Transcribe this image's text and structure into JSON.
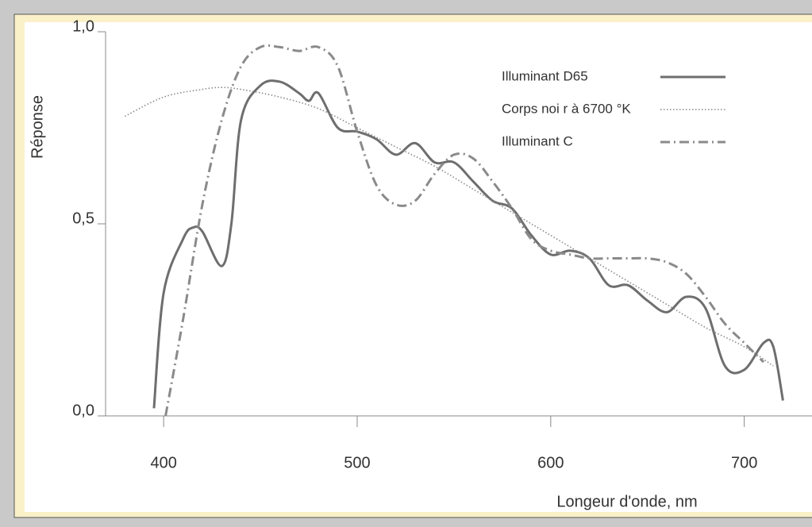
{
  "chart_data": {
    "type": "line",
    "ylabel": "Réponse",
    "xlabel": "Longeur d'onde, nm",
    "xlim": [
      370,
      735
    ],
    "ylim": [
      0,
      1
    ],
    "xticks": [
      400,
      500,
      600,
      700
    ],
    "yticks": [
      {
        "value": 0,
        "label": "0,0"
      },
      {
        "value": 0.5,
        "label": "0,5"
      },
      {
        "value": 1,
        "label": "1,0"
      }
    ],
    "legend": "top-right",
    "series": [
      {
        "name": "Illuminant D65",
        "color": "#6e6e6e",
        "style": "solid",
        "x": [
          395,
          400,
          410,
          415,
          420,
          430,
          435,
          440,
          450,
          460,
          470,
          475,
          480,
          490,
          500,
          510,
          520,
          530,
          540,
          550,
          560,
          570,
          580,
          590,
          600,
          610,
          620,
          630,
          640,
          650,
          660,
          670,
          680,
          690,
          700,
          710,
          715,
          720
        ],
        "values": [
          0.02,
          0.32,
          0.46,
          0.49,
          0.48,
          0.39,
          0.5,
          0.77,
          0.86,
          0.87,
          0.84,
          0.82,
          0.84,
          0.75,
          0.74,
          0.72,
          0.68,
          0.71,
          0.66,
          0.66,
          0.61,
          0.56,
          0.54,
          0.47,
          0.42,
          0.43,
          0.41,
          0.34,
          0.34,
          0.3,
          0.27,
          0.31,
          0.28,
          0.13,
          0.12,
          0.19,
          0.18,
          0.04
        ]
      },
      {
        "name": "Corps noi r à 6700 °K",
        "color": "#8a8a8a",
        "style": "dotted",
        "x": [
          380,
          400,
          420,
          430,
          440,
          460,
          480,
          500,
          520,
          540,
          560,
          580,
          600,
          620,
          640,
          660,
          680,
          700,
          715
        ],
        "values": [
          0.78,
          0.83,
          0.85,
          0.855,
          0.85,
          0.83,
          0.8,
          0.75,
          0.7,
          0.65,
          0.59,
          0.53,
          0.47,
          0.41,
          0.35,
          0.29,
          0.23,
          0.18,
          0.13
        ]
      },
      {
        "name": "Illuminant C",
        "color": "#8a8a8a",
        "style": "dash-dot",
        "x": [
          401,
          410,
          420,
          430,
          440,
          450,
          460,
          470,
          480,
          490,
          500,
          510,
          520,
          530,
          540,
          550,
          560,
          570,
          580,
          590,
          600,
          610,
          620,
          630,
          640,
          650,
          660,
          670,
          680,
          690,
          700,
          710
        ],
        "values": [
          0.0,
          0.25,
          0.55,
          0.77,
          0.91,
          0.96,
          0.96,
          0.95,
          0.96,
          0.91,
          0.74,
          0.6,
          0.55,
          0.56,
          0.63,
          0.68,
          0.67,
          0.61,
          0.54,
          0.46,
          0.43,
          0.42,
          0.41,
          0.41,
          0.41,
          0.41,
          0.4,
          0.37,
          0.31,
          0.24,
          0.19,
          0.14
        ]
      }
    ]
  }
}
